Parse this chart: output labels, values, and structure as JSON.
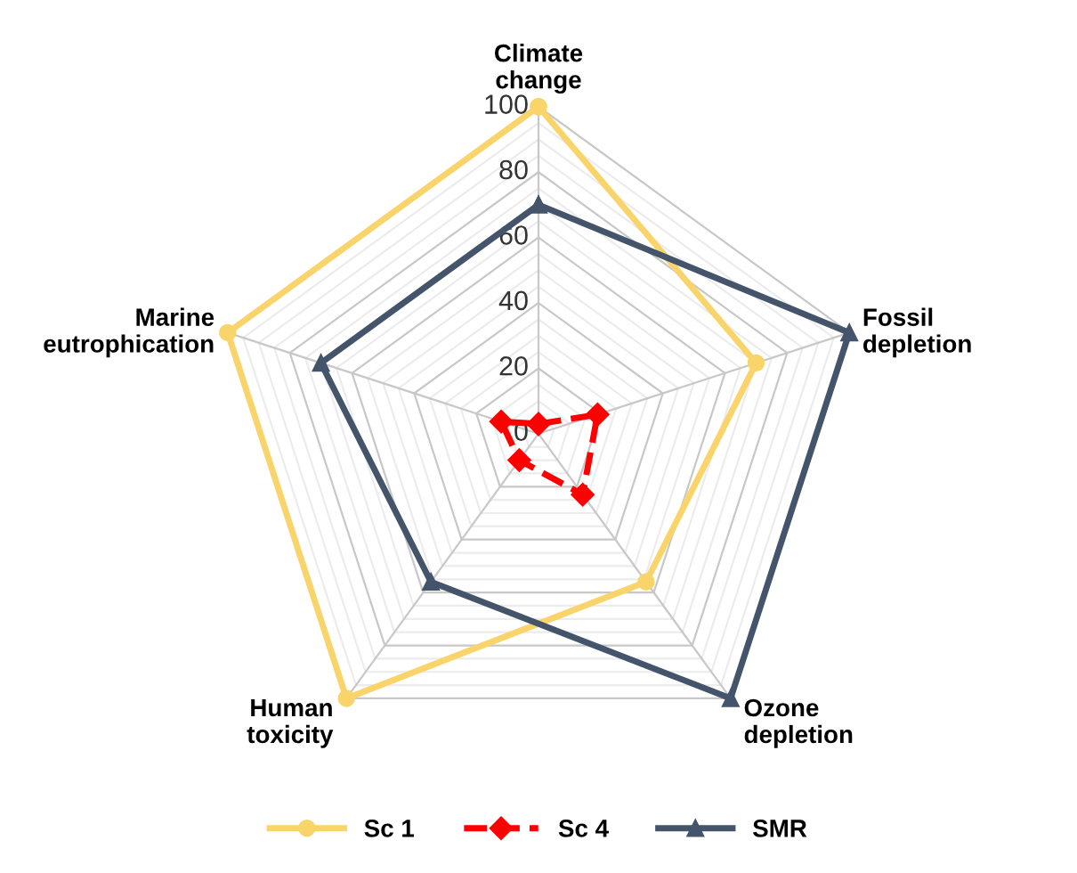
{
  "chart_data": {
    "type": "radar",
    "categories": [
      "Climate\nchange",
      "Fossil\ndepletion",
      "Ozone\ndepletion",
      "Human\ntoxicity",
      "Marine\neutrophication"
    ],
    "ylim": [
      0,
      100
    ],
    "yticks": [
      0,
      20,
      40,
      60,
      80,
      100
    ],
    "grid": true,
    "legend": "bottom",
    "series": [
      {
        "name": "Sc 1",
        "color": "#f9d46b",
        "marker": "circle",
        "line_style": "solid",
        "values": [
          100,
          70,
          56,
          100,
          100
        ]
      },
      {
        "name": "Sc 4",
        "color": "#ff0000",
        "marker": "diamond",
        "line_style": "dashed",
        "values": [
          3,
          19,
          23,
          10,
          12
        ]
      },
      {
        "name": "SMR",
        "color": "#44546a",
        "marker": "triangle",
        "line_style": "solid",
        "values": [
          70,
          100,
          100,
          56,
          70
        ]
      }
    ]
  }
}
